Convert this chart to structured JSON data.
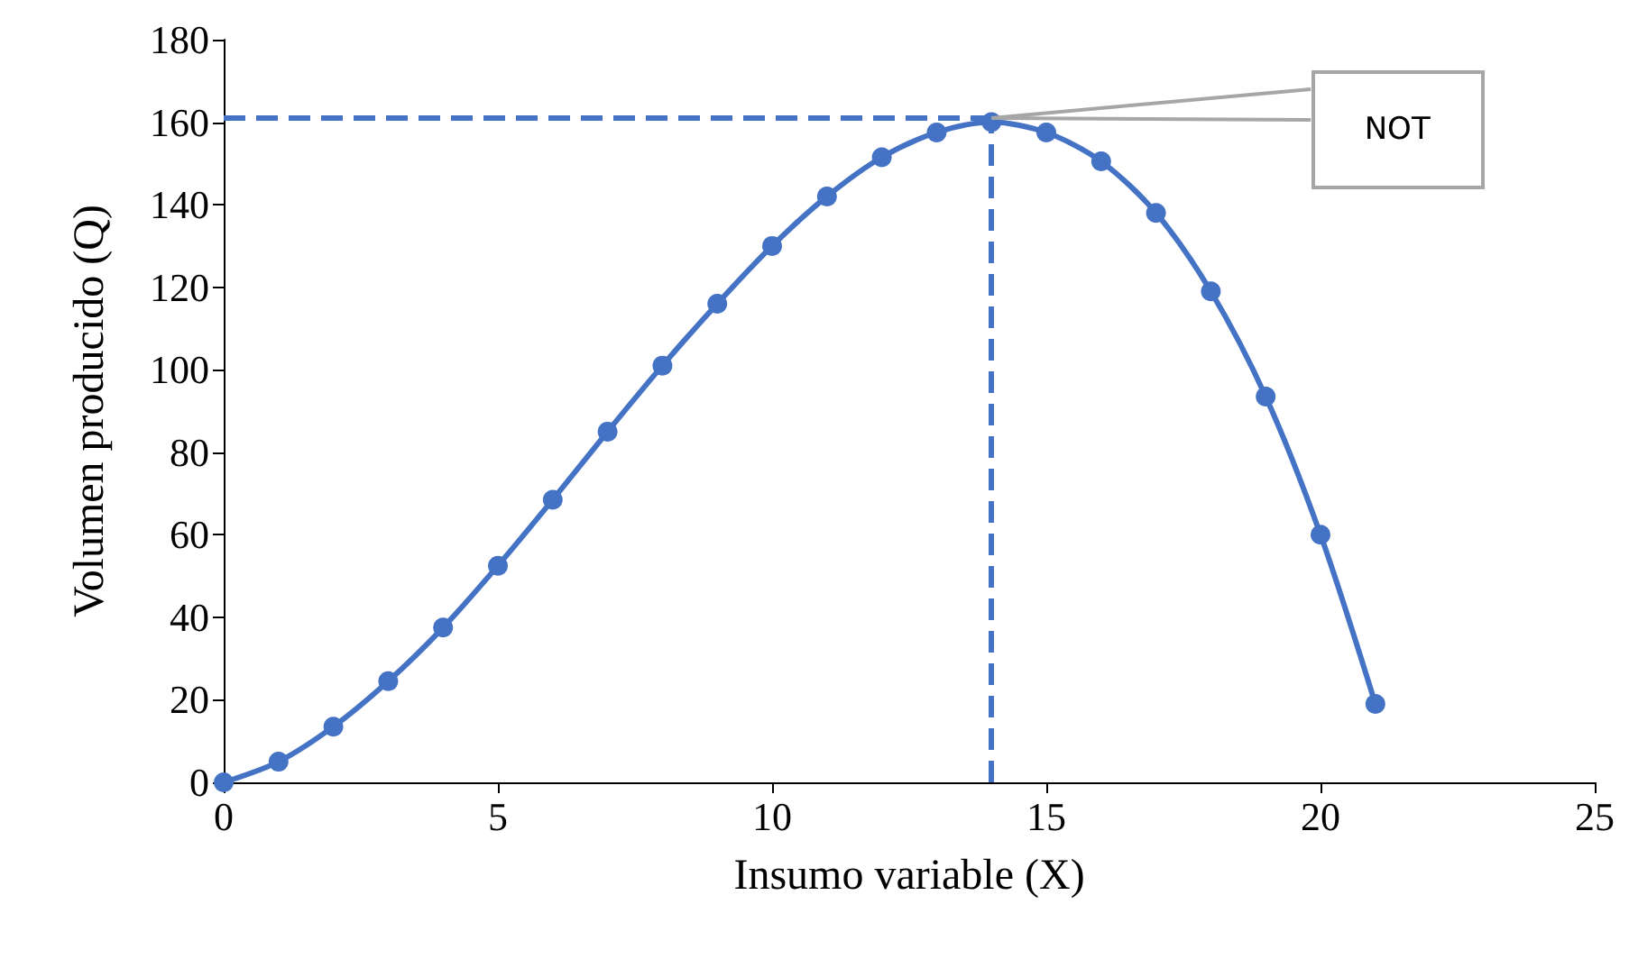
{
  "chart_data": {
    "type": "line",
    "xlabel": "Insumo variable (X)",
    "ylabel": "Volumen producido (Q)",
    "x": [
      0,
      1,
      2,
      3,
      4,
      5,
      6,
      7,
      8,
      9,
      10,
      11,
      12,
      13,
      14,
      15,
      16,
      17,
      18,
      19,
      20,
      21
    ],
    "series": [
      {
        "color": "#4472c4",
        "values": [
          0,
          5,
          13.5,
          24.5,
          37.5,
          52.5,
          68.5,
          85,
          101,
          116,
          130,
          142,
          151.5,
          157.5,
          160,
          157.5,
          150.5,
          138,
          119,
          93.5,
          60,
          19
        ]
      }
    ],
    "xlim": [
      0,
      25
    ],
    "xticks": [
      0,
      5,
      10,
      15,
      20,
      25
    ],
    "ylim": [
      0,
      180
    ],
    "yticks": [
      0,
      20,
      40,
      60,
      80,
      100,
      120,
      140,
      160,
      180
    ],
    "ref_lines": [
      {
        "axis": "x",
        "value": 14,
        "line_style": "dashed",
        "color": "#4472c4"
      },
      {
        "axis": "y",
        "value": 161,
        "line_style": "dashed",
        "color": "#4472c4"
      }
    ],
    "annotations": [
      "NOT"
    ],
    "marker": "circle",
    "line_style": "solid",
    "grid": false
  }
}
